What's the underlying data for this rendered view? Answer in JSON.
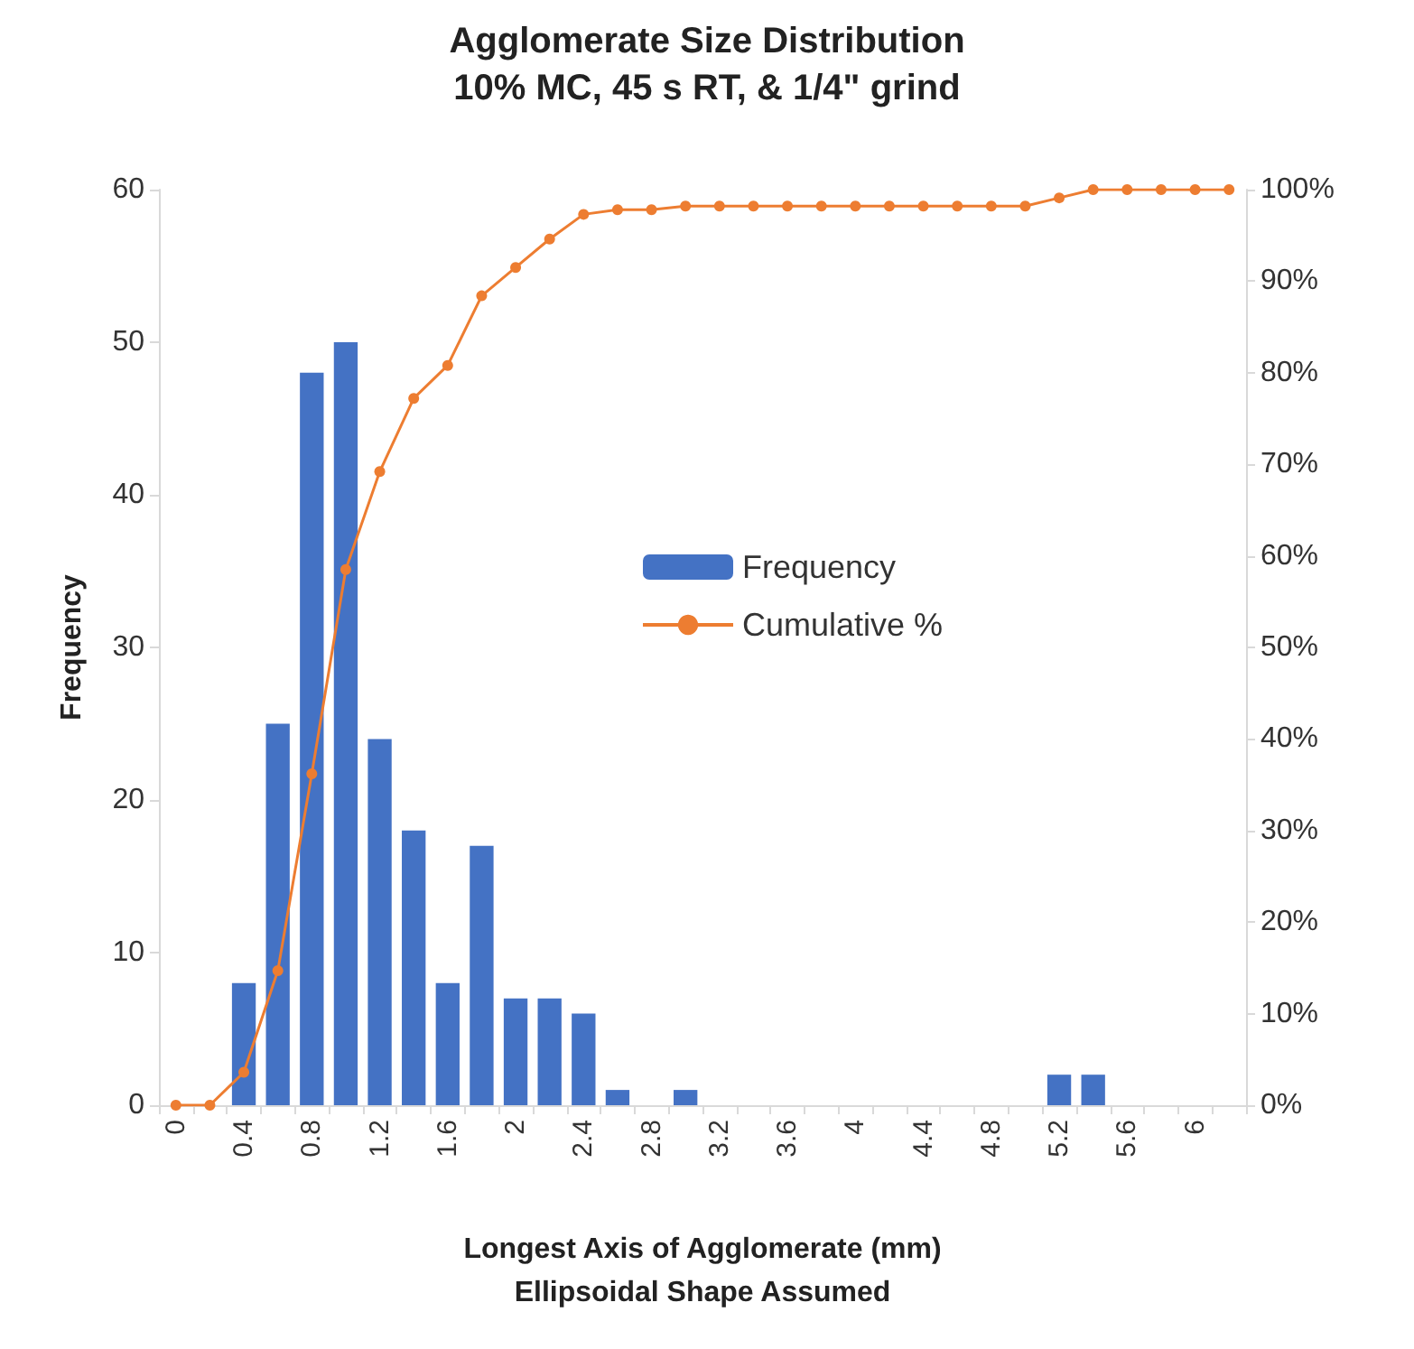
{
  "chart_data": {
    "type": "bar",
    "title": "Agglomerate Size Distribution",
    "subtitle": "10% MC, 45 s RT, & 1/4\" grind",
    "xlabel": "Longest Axis of Agglomerate (mm)\nEllipsoidal Shape Assumed",
    "ylabel": "Frequency",
    "categories": [
      "0",
      null,
      "0.4",
      null,
      "0.8",
      null,
      "1.2",
      null,
      "1.6",
      null,
      "2",
      null,
      "2.4",
      null,
      "2.8",
      null,
      "3.2",
      null,
      "3.6",
      null,
      "4",
      null,
      "4.4",
      null,
      "4.8",
      null,
      "5.2",
      null,
      "5.6",
      null,
      "6",
      null
    ],
    "series": [
      {
        "name": "Frequency",
        "color": "#4472c4",
        "values": [
          0,
          0,
          8,
          25,
          48,
          50,
          24,
          18,
          8,
          17,
          7,
          7,
          6,
          1,
          0,
          1,
          0,
          0,
          0,
          0,
          0,
          0,
          0,
          0,
          0,
          0,
          2,
          2,
          0,
          0,
          0,
          0
        ]
      },
      {
        "name": "Cumulative %",
        "type": "line",
        "axis": "y2",
        "color": "#ed7d31",
        "marker": "circle",
        "values": [
          0,
          0,
          3.6,
          14.7,
          36.2,
          58.5,
          69.2,
          77.2,
          80.8,
          88.4,
          91.5,
          94.6,
          97.3,
          97.8,
          97.8,
          98.2,
          98.2,
          98.2,
          98.2,
          98.2,
          98.2,
          98.2,
          98.2,
          98.2,
          98.2,
          98.2,
          99.1,
          100,
          100,
          100,
          100,
          100
        ]
      }
    ],
    "ylim": [
      0,
      60
    ],
    "yticks": [
      0,
      10,
      20,
      30,
      40,
      50,
      60
    ],
    "y2lim": [
      0,
      100
    ],
    "y2ticks": [
      {
        "value": 0,
        "label": "0%"
      },
      {
        "value": 10,
        "label": "10%"
      },
      {
        "value": 20,
        "label": "20%"
      },
      {
        "value": 30,
        "label": "30%"
      },
      {
        "value": 40,
        "label": "40%"
      },
      {
        "value": 50,
        "label": "50%"
      },
      {
        "value": 60,
        "label": "60%"
      },
      {
        "value": 70,
        "label": "70%"
      },
      {
        "value": 80,
        "label": "80%"
      },
      {
        "value": 90,
        "label": "90%"
      },
      {
        "value": 100,
        "label": "100%"
      }
    ],
    "grid": false,
    "legend": "center"
  }
}
